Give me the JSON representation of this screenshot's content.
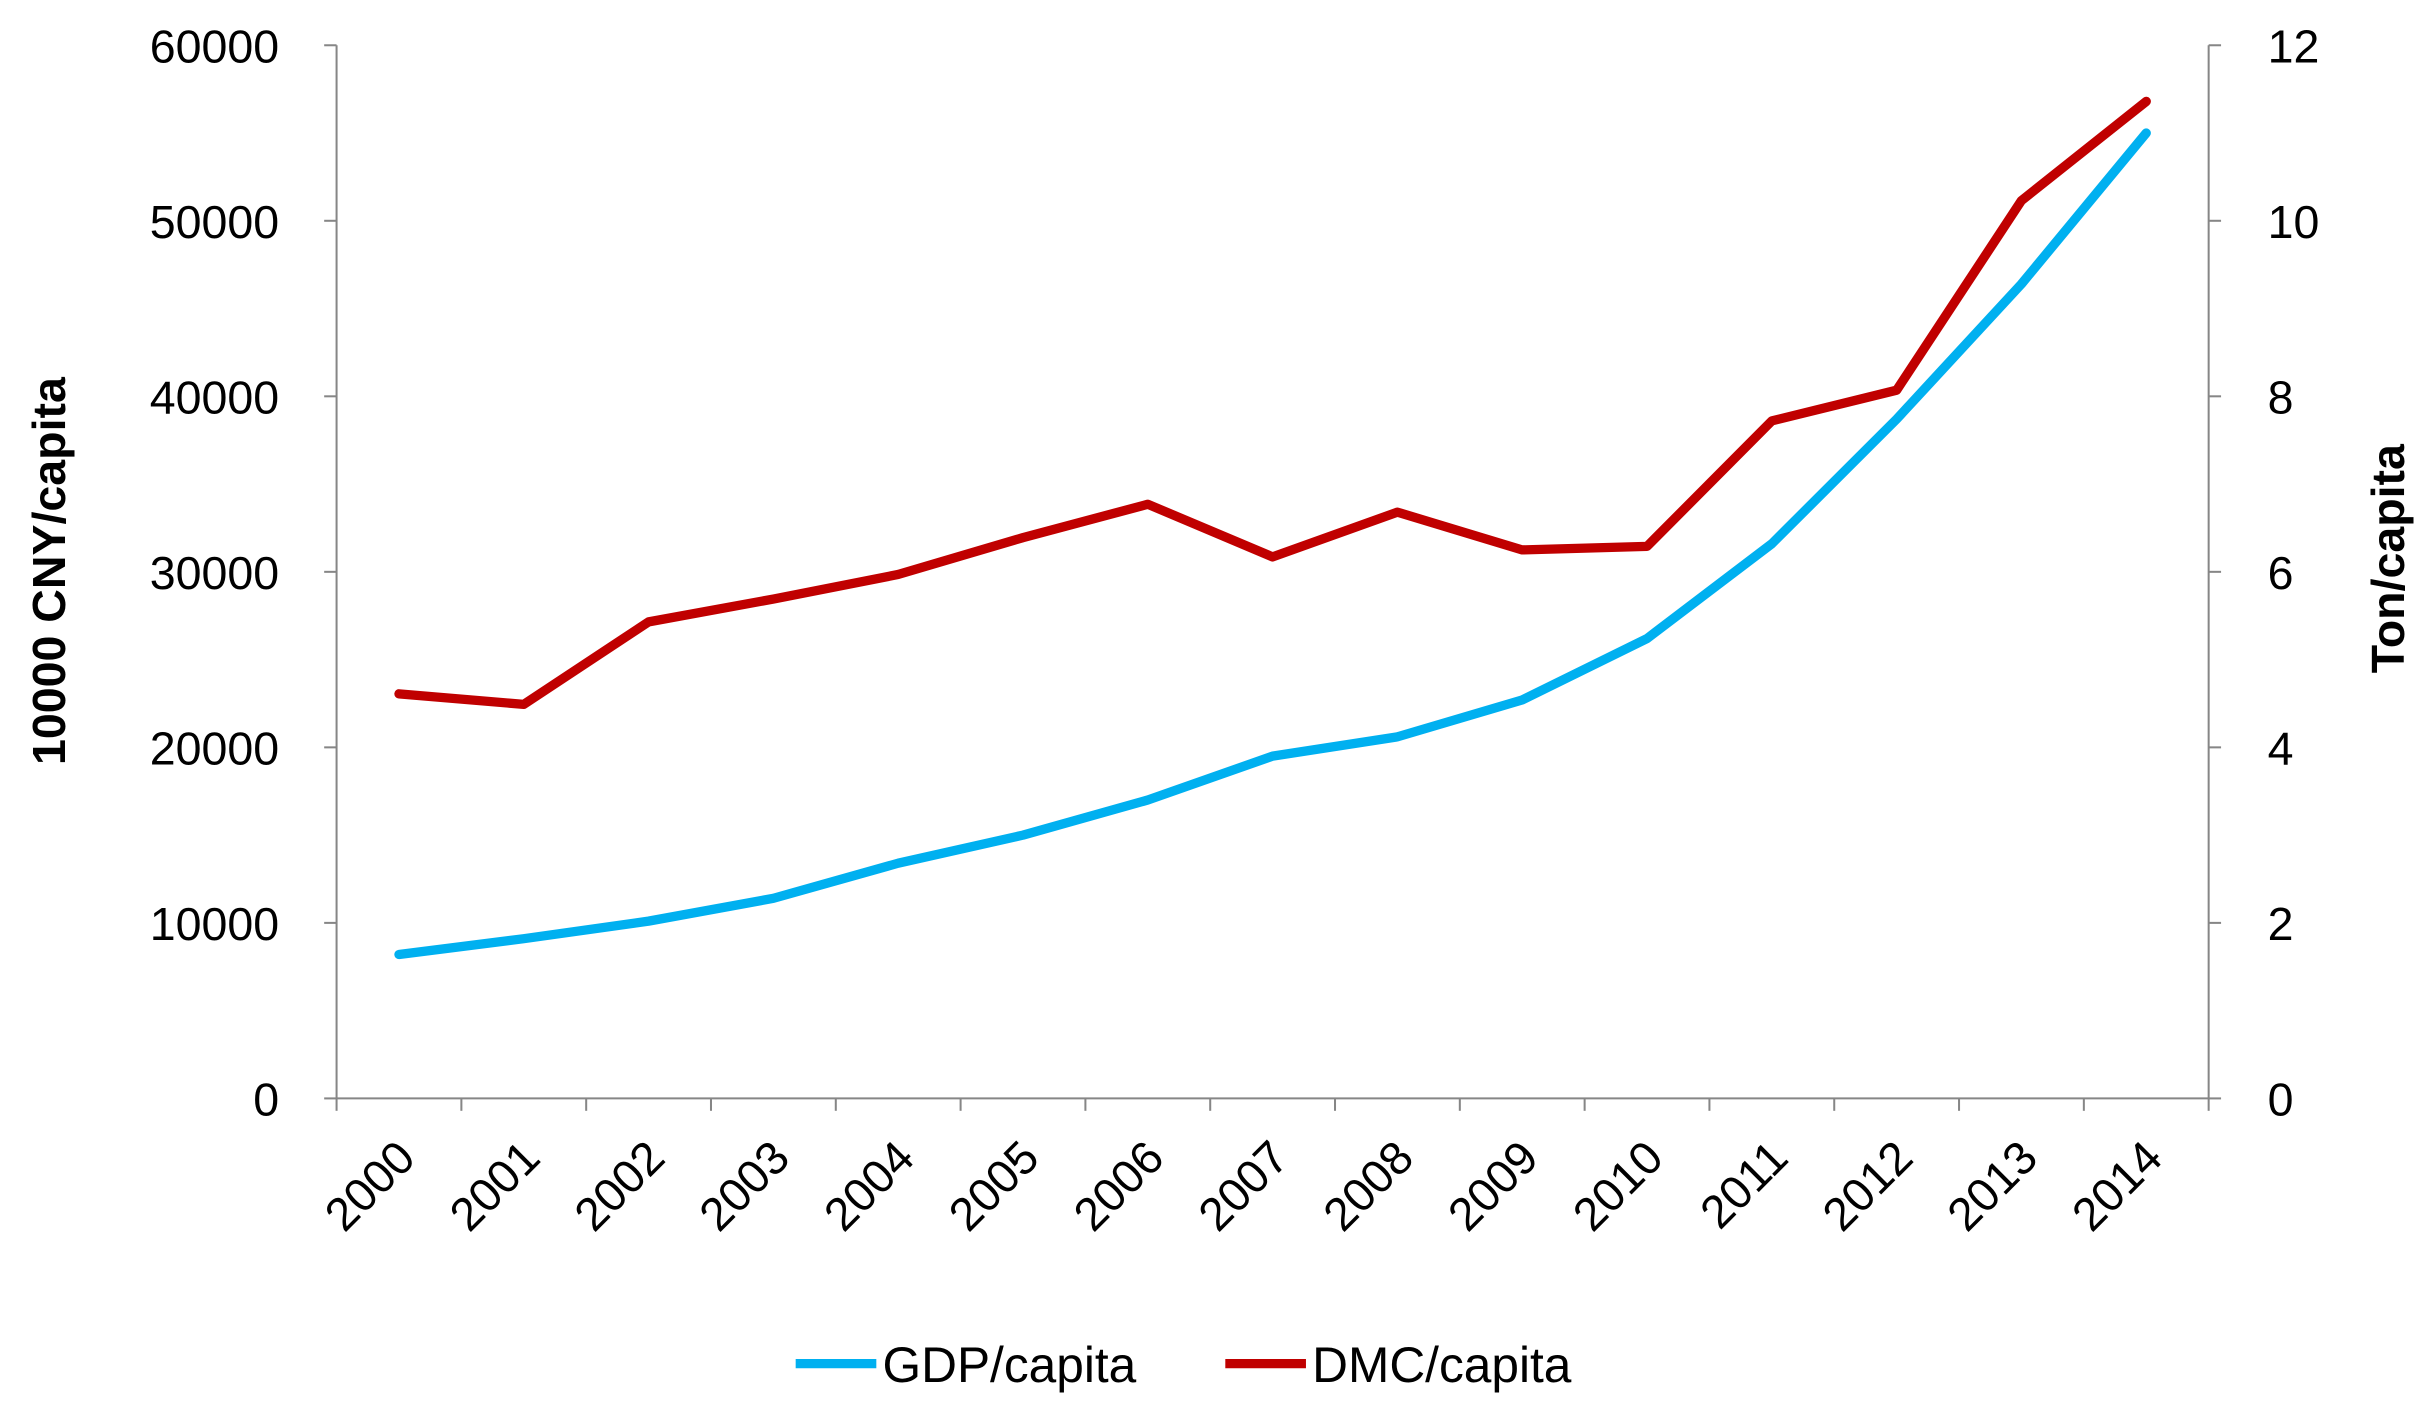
{
  "chart_data": {
    "type": "line",
    "categories": [
      "2000",
      "2001",
      "2002",
      "2003",
      "2004",
      "2005",
      "2006",
      "2007",
      "2008",
      "2009",
      "2010",
      "2011",
      "2012",
      "2013",
      "2014"
    ],
    "y_left": {
      "label": "10000 CNY/capita",
      "range": [
        0,
        60000
      ],
      "ticks": [
        "0",
        "10000",
        "20000",
        "30000",
        "40000",
        "50000",
        "60000"
      ]
    },
    "y_right": {
      "label": "Ton/capita",
      "range": [
        0,
        12
      ],
      "ticks": [
        "0",
        "2",
        "4",
        "6",
        "8",
        "10",
        "12"
      ]
    },
    "series": [
      {
        "name": "GDP/capita",
        "axis": "left",
        "color": "#00B0F0",
        "values": [
          8200,
          9100,
          10100,
          11400,
          13400,
          15000,
          17000,
          19500,
          20600,
          22700,
          26200,
          31600,
          38700,
          46400,
          55000
        ]
      },
      {
        "name": "DMC/capita",
        "axis": "right",
        "color": "#C00000",
        "values": [
          4.61,
          4.49,
          5.43,
          5.69,
          5.97,
          6.39,
          6.77,
          6.17,
          6.68,
          6.25,
          6.29,
          7.72,
          8.07,
          10.23,
          11.36
        ]
      }
    ],
    "grid": false,
    "legend": "bottom"
  }
}
